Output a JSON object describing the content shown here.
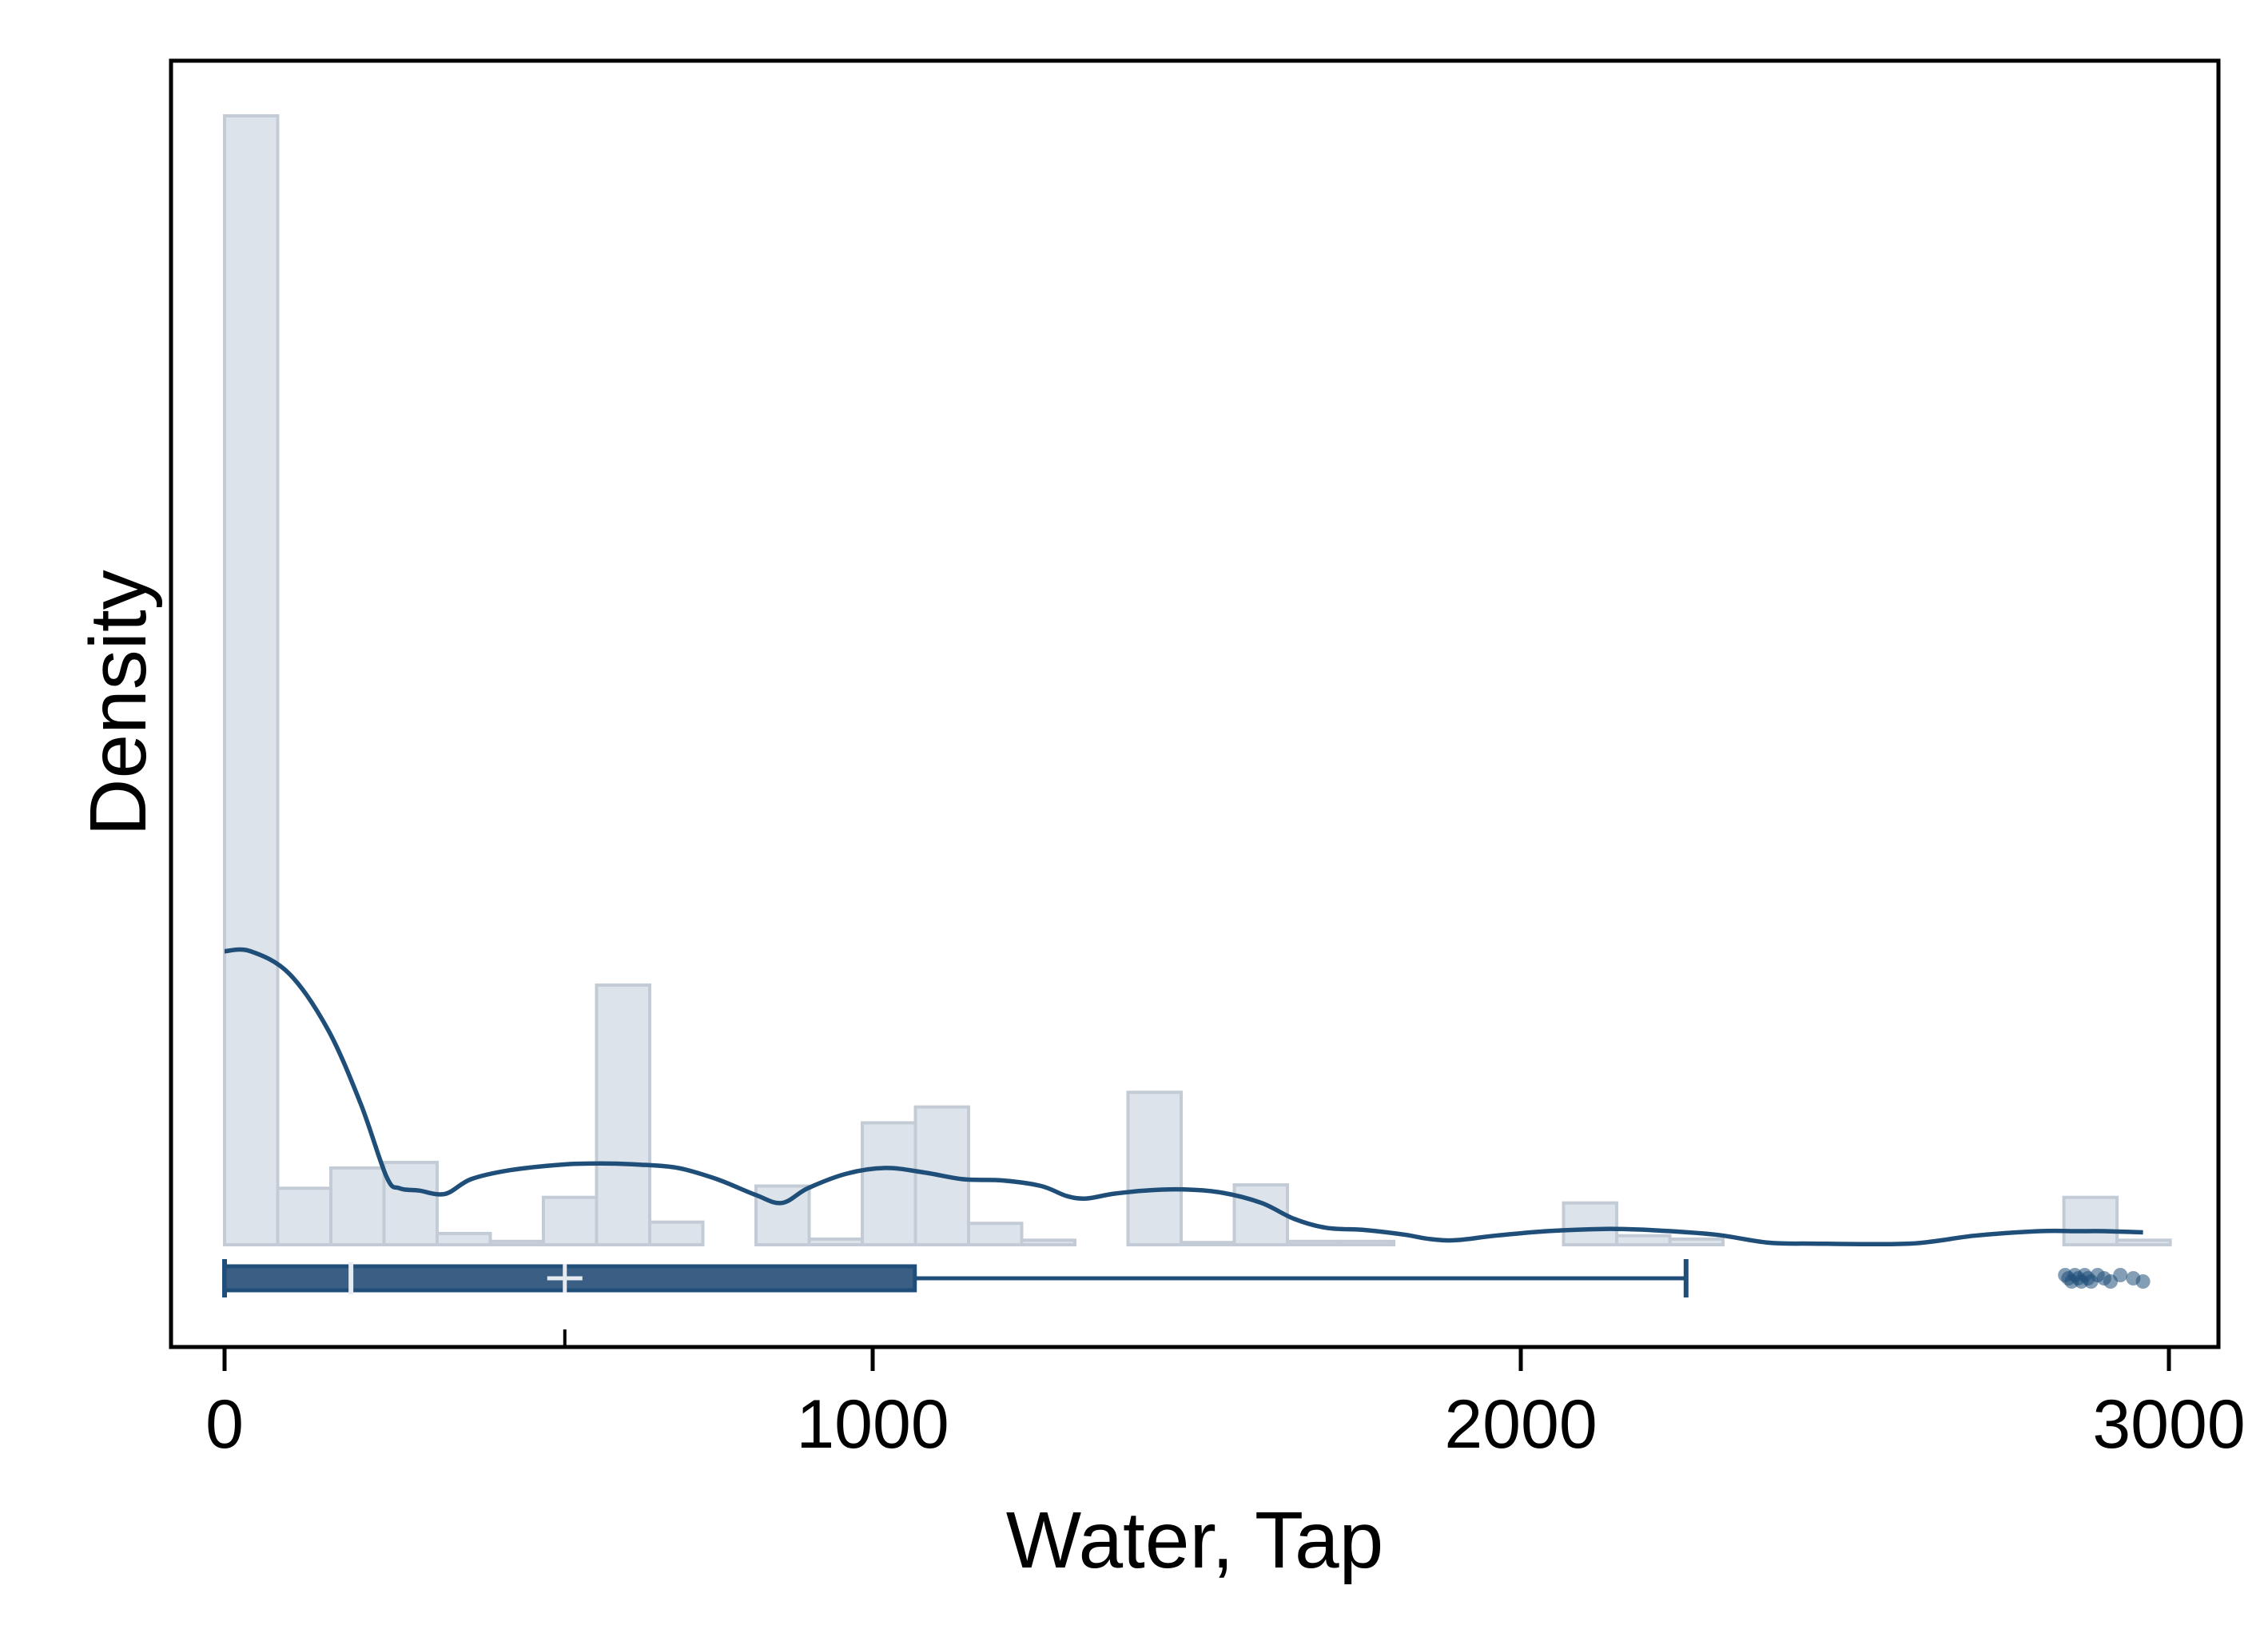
{
  "chart_data": {
    "type": "histogram",
    "xlabel": "Water, Tap",
    "ylabel": "Density",
    "xlim": [
      -80,
      3080
    ],
    "x_ticks": [
      0,
      1000,
      2000,
      3000
    ],
    "x_tick_labels": [
      "0",
      "1000",
      "2000",
      "3000"
    ],
    "y_tick_labels": [],
    "grid": false,
    "legend": "none",
    "colors": {
      "bar_fill": "#dde3ea",
      "bar_stroke": "#c3ccd6",
      "kde_line": "#1f4e79",
      "box": "#3b5f84",
      "box_stroke": "#1f4e79",
      "median_mark": "#e6ebf1",
      "outlier": "#1f4e79"
    },
    "bin_width": 82,
    "histogram": {
      "bin_start": [
        0,
        82,
        164,
        246,
        328,
        410,
        492,
        574,
        656,
        820,
        902,
        984,
        1066,
        1148,
        1230,
        1394,
        1476,
        1558,
        1640,
        1722,
        2066,
        2148,
        2230,
        2838,
        2920
      ],
      "density": [
        100,
        5.0,
        6.8,
        7.3,
        1.0,
        0.3,
        4.2,
        23.0,
        2.0,
        5.2,
        0.5,
        10.8,
        12.2,
        1.9,
        0.4,
        13.5,
        0.2,
        5.3,
        0.3,
        0.3,
        3.7,
        0.8,
        0.5,
        4.2,
        0.4
      ]
    },
    "kde": {
      "x": [
        0,
        40,
        100,
        160,
        210,
        250,
        270,
        300,
        340,
        380,
        440,
        520,
        580,
        640,
        700,
        760,
        820,
        860,
        900,
        960,
        1020,
        1080,
        1140,
        1200,
        1260,
        1300,
        1330,
        1370,
        1420,
        1480,
        1540,
        1600,
        1650,
        1700,
        1760,
        1820,
        1860,
        1900,
        1960,
        2040,
        2130,
        2200,
        2300,
        2380,
        2450,
        2600,
        2700,
        2800,
        2860,
        2900,
        2960
      ],
      "density": [
        26.0,
        26.0,
        24.0,
        19.0,
        12.5,
        6.0,
        5.0,
        4.8,
        4.5,
        5.8,
        6.6,
        7.1,
        7.2,
        7.1,
        6.8,
        5.8,
        4.4,
        3.7,
        5.0,
        6.3,
        6.8,
        6.4,
        5.8,
        5.7,
        5.2,
        4.3,
        4.1,
        4.5,
        4.8,
        4.9,
        4.6,
        3.7,
        2.3,
        1.5,
        1.3,
        0.9,
        0.5,
        0.4,
        0.8,
        1.2,
        1.4,
        1.3,
        0.9,
        0.2,
        0.1,
        0.1,
        0.8,
        1.2,
        1.2,
        1.2,
        1.1
      ]
    },
    "boxplot": {
      "whisker_low": 0,
      "q1": 0,
      "median": 195,
      "mean": 525,
      "q3": 1065,
      "whisker_high": 2255,
      "outliers": [
        2840,
        2845,
        2850,
        2855,
        2860,
        2865,
        2870,
        2875,
        2880,
        2890,
        2900,
        2910,
        2925,
        2945,
        2960
      ]
    }
  }
}
